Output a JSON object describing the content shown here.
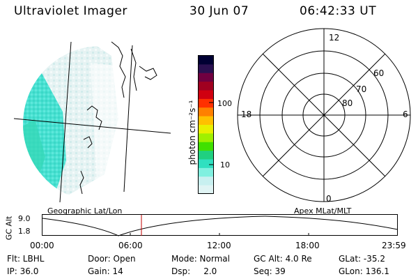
{
  "header": {
    "title": "Ultraviolet Imager",
    "date": "30 Jun 07",
    "time": "06:42:33 UT"
  },
  "colorbar": {
    "unit_label": "photon cm⁻²s⁻¹",
    "ticks": [
      "100",
      "10"
    ],
    "colors": [
      "#000033",
      "#2a1050",
      "#700040",
      "#a00020",
      "#d00010",
      "#ff3000",
      "#ff8000",
      "#ffc000",
      "#e8f000",
      "#a0f000",
      "#40e000",
      "#20d080",
      "#30e0c0",
      "#80f0e0",
      "#c8f0f0",
      "#e0f4f4"
    ]
  },
  "polar_plot": {
    "mlt_labels": {
      "top": "12",
      "left": "18",
      "right": "6",
      "bottom": "0"
    },
    "lat_labels": [
      "60",
      "70",
      "80"
    ]
  },
  "timeline": {
    "axis_label": "GC Alt",
    "left_title": "Geographic Lat/Lon",
    "right_title": "Apex MLat/MLT",
    "y_ticks": [
      "9.0",
      "1.8"
    ],
    "x_ticks": [
      "00:00",
      "06:00",
      "12:00",
      "18:00",
      "23:59"
    ],
    "current_time_marker_color": "#c00000"
  },
  "info": {
    "flt": "Flt: LBHL",
    "ip": "IP: 36.0",
    "door": "Door: Open",
    "gain": "Gain: 14",
    "mode": "Mode: Normal",
    "dsp": "Dsp:     2.0",
    "gcalt": "GC Alt: 4.0 Re",
    "seq": "Seq: 39",
    "glat": "GLat: -35.2",
    "glon": "GLon: 136.1"
  }
}
